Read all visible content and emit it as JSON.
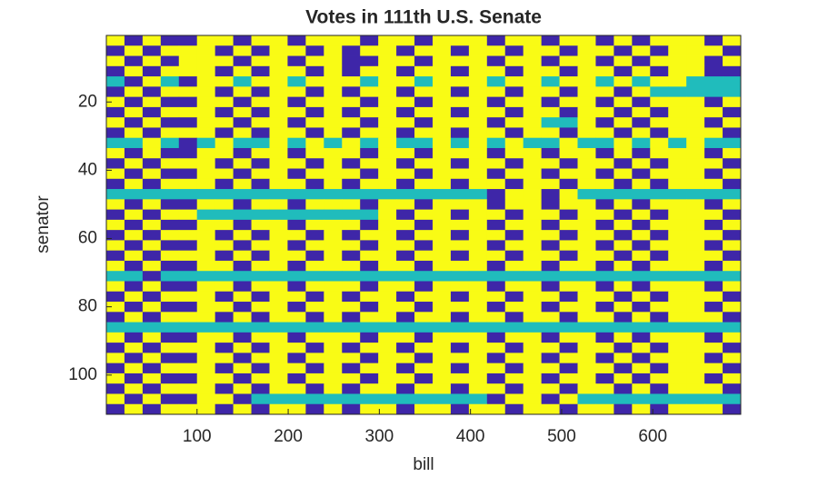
{
  "chart_data": {
    "type": "heatmap",
    "title": "Votes in 111th U.S. Senate",
    "x_label": "bill",
    "y_label": "senator",
    "xlim": [
      0.5,
      696.5
    ],
    "ylim": [
      0.5,
      111.5
    ],
    "ydir": "reverse",
    "xticks": [
      100,
      200,
      300,
      400,
      500,
      600
    ],
    "yticks": [
      20,
      40,
      60,
      80,
      100
    ],
    "clim": [
      -1,
      1
    ],
    "colors": [
      "#3e26a8",
      "#20bcbc",
      "#f9fb15"
    ],
    "matrix": [
      [
        1,
        -1,
        1,
        -1,
        -1,
        1,
        1,
        -1,
        1,
        1,
        -1,
        1,
        1,
        1,
        -1,
        1,
        1,
        -1,
        1,
        1,
        1,
        -1,
        1,
        1,
        -1,
        1,
        1,
        -1,
        1,
        -1,
        1,
        1,
        1,
        -1,
        1
      ],
      [
        -1,
        1,
        -1,
        1,
        1,
        1,
        -1,
        1,
        -1,
        1,
        1,
        -1,
        1,
        -1,
        1,
        1,
        -1,
        1,
        1,
        -1,
        1,
        1,
        -1,
        1,
        1,
        -1,
        1,
        1,
        -1,
        1,
        -1,
        1,
        1,
        1,
        -1
      ],
      [
        1,
        -1,
        1,
        -1,
        1,
        1,
        1,
        -1,
        1,
        1,
        -1,
        1,
        1,
        -1,
        -1,
        1,
        1,
        -1,
        1,
        1,
        1,
        -1,
        1,
        1,
        -1,
        1,
        1,
        -1,
        1,
        -1,
        1,
        1,
        1,
        -1,
        1
      ],
      [
        -1,
        1,
        -1,
        1,
        1,
        1,
        -1,
        1,
        -1,
        1,
        1,
        -1,
        1,
        -1,
        1,
        1,
        -1,
        1,
        1,
        -1,
        1,
        1,
        -1,
        1,
        1,
        -1,
        1,
        1,
        -1,
        1,
        -1,
        1,
        1,
        -1,
        -1
      ],
      [
        0,
        -1,
        1,
        0,
        -1,
        1,
        1,
        0,
        1,
        1,
        0,
        1,
        1,
        1,
        0,
        1,
        1,
        0,
        1,
        1,
        1,
        0,
        1,
        1,
        0,
        1,
        1,
        0,
        1,
        0,
        1,
        1,
        0,
        0,
        0
      ],
      [
        -1,
        1,
        -1,
        1,
        1,
        1,
        -1,
        1,
        -1,
        1,
        1,
        -1,
        1,
        -1,
        1,
        1,
        -1,
        1,
        1,
        -1,
        1,
        1,
        -1,
        1,
        1,
        -1,
        1,
        1,
        -1,
        1,
        0,
        0,
        0,
        0,
        0
      ],
      [
        1,
        -1,
        1,
        -1,
        -1,
        1,
        1,
        -1,
        1,
        1,
        -1,
        1,
        1,
        1,
        -1,
        1,
        1,
        -1,
        1,
        1,
        1,
        -1,
        1,
        1,
        -1,
        1,
        1,
        -1,
        1,
        -1,
        1,
        1,
        1,
        -1,
        1
      ],
      [
        -1,
        1,
        -1,
        1,
        1,
        1,
        -1,
        1,
        -1,
        1,
        1,
        -1,
        1,
        -1,
        1,
        1,
        -1,
        1,
        1,
        -1,
        1,
        1,
        -1,
        1,
        1,
        -1,
        1,
        1,
        -1,
        1,
        -1,
        1,
        1,
        1,
        -1
      ],
      [
        1,
        -1,
        1,
        -1,
        -1,
        1,
        1,
        -1,
        1,
        1,
        -1,
        1,
        1,
        1,
        -1,
        1,
        1,
        -1,
        1,
        1,
        1,
        -1,
        1,
        1,
        0,
        0,
        1,
        -1,
        1,
        -1,
        1,
        1,
        1,
        -1,
        1
      ],
      [
        -1,
        1,
        -1,
        1,
        1,
        1,
        -1,
        1,
        -1,
        1,
        1,
        -1,
        1,
        -1,
        1,
        1,
        -1,
        1,
        1,
        -1,
        1,
        1,
        -1,
        1,
        1,
        -1,
        1,
        1,
        -1,
        1,
        -1,
        1,
        1,
        1,
        -1
      ],
      [
        0,
        0,
        1,
        0,
        -1,
        0,
        1,
        0,
        0,
        1,
        0,
        1,
        0,
        1,
        0,
        1,
        0,
        0,
        1,
        0,
        1,
        0,
        1,
        0,
        0,
        1,
        0,
        0,
        1,
        0,
        1,
        0,
        1,
        0,
        0
      ],
      [
        1,
        -1,
        1,
        -1,
        -1,
        1,
        1,
        -1,
        1,
        1,
        -1,
        1,
        1,
        1,
        -1,
        1,
        1,
        -1,
        1,
        1,
        1,
        -1,
        1,
        1,
        -1,
        1,
        1,
        -1,
        1,
        -1,
        1,
        1,
        1,
        -1,
        1
      ],
      [
        -1,
        1,
        -1,
        1,
        1,
        1,
        -1,
        1,
        -1,
        1,
        1,
        -1,
        1,
        -1,
        1,
        1,
        -1,
        1,
        1,
        -1,
        1,
        1,
        -1,
        1,
        1,
        -1,
        1,
        1,
        -1,
        1,
        -1,
        1,
        1,
        1,
        -1
      ],
      [
        1,
        -1,
        1,
        -1,
        -1,
        1,
        1,
        -1,
        1,
        1,
        -1,
        1,
        1,
        1,
        -1,
        1,
        1,
        -1,
        1,
        1,
        1,
        -1,
        1,
        1,
        -1,
        1,
        1,
        -1,
        1,
        -1,
        1,
        1,
        1,
        -1,
        1
      ],
      [
        -1,
        1,
        -1,
        1,
        1,
        1,
        -1,
        1,
        -1,
        1,
        1,
        -1,
        1,
        -1,
        1,
        1,
        -1,
        1,
        1,
        -1,
        1,
        1,
        -1,
        1,
        1,
        -1,
        1,
        1,
        -1,
        1,
        -1,
        1,
        1,
        1,
        -1
      ],
      [
        0,
        0,
        0,
        0,
        0,
        0,
        0,
        0,
        0,
        0,
        0,
        0,
        0,
        0,
        0,
        0,
        0,
        0,
        0,
        0,
        0,
        -1,
        1,
        1,
        -1,
        1,
        0,
        0,
        0,
        0,
        0,
        0,
        0,
        0,
        0
      ],
      [
        1,
        -1,
        1,
        -1,
        -1,
        1,
        1,
        -1,
        1,
        1,
        -1,
        1,
        1,
        1,
        -1,
        1,
        1,
        -1,
        1,
        1,
        1,
        -1,
        1,
        1,
        -1,
        1,
        1,
        -1,
        1,
        -1,
        1,
        1,
        1,
        -1,
        1
      ],
      [
        -1,
        1,
        -1,
        1,
        1,
        0,
        0,
        0,
        0,
        0,
        0,
        0,
        0,
        0,
        0,
        1,
        -1,
        1,
        1,
        -1,
        1,
        1,
        -1,
        1,
        1,
        -1,
        1,
        1,
        -1,
        1,
        -1,
        1,
        1,
        1,
        -1
      ],
      [
        1,
        -1,
        1,
        -1,
        -1,
        1,
        1,
        -1,
        1,
        1,
        -1,
        1,
        1,
        1,
        -1,
        1,
        1,
        -1,
        1,
        1,
        1,
        -1,
        1,
        1,
        -1,
        1,
        1,
        -1,
        1,
        -1,
        1,
        1,
        1,
        -1,
        1
      ],
      [
        -1,
        1,
        -1,
        1,
        1,
        1,
        -1,
        1,
        -1,
        1,
        1,
        -1,
        1,
        -1,
        1,
        1,
        -1,
        1,
        1,
        -1,
        1,
        1,
        -1,
        1,
        1,
        -1,
        1,
        1,
        -1,
        1,
        -1,
        1,
        1,
        1,
        -1
      ],
      [
        1,
        -1,
        1,
        -1,
        -1,
        1,
        1,
        -1,
        1,
        1,
        -1,
        1,
        1,
        1,
        -1,
        1,
        1,
        -1,
        1,
        1,
        1,
        -1,
        1,
        1,
        -1,
        1,
        1,
        -1,
        1,
        -1,
        1,
        1,
        1,
        -1,
        1
      ],
      [
        -1,
        1,
        -1,
        1,
        1,
        1,
        -1,
        1,
        -1,
        1,
        1,
        -1,
        1,
        -1,
        1,
        1,
        -1,
        1,
        1,
        -1,
        1,
        1,
        -1,
        1,
        1,
        -1,
        1,
        1,
        -1,
        1,
        -1,
        1,
        1,
        1,
        -1
      ],
      [
        1,
        -1,
        1,
        -1,
        -1,
        1,
        1,
        -1,
        1,
        1,
        -1,
        1,
        1,
        1,
        -1,
        1,
        1,
        -1,
        1,
        1,
        1,
        -1,
        1,
        1,
        -1,
        1,
        1,
        -1,
        1,
        -1,
        1,
        1,
        1,
        -1,
        1
      ],
      [
        0,
        0,
        -1,
        0,
        0,
        0,
        0,
        0,
        0,
        0,
        0,
        0,
        0,
        0,
        0,
        0,
        0,
        0,
        0,
        0,
        0,
        0,
        0,
        0,
        0,
        0,
        0,
        0,
        0,
        0,
        0,
        0,
        0,
        0,
        0
      ],
      [
        1,
        -1,
        1,
        -1,
        -1,
        1,
        1,
        -1,
        1,
        1,
        -1,
        1,
        1,
        1,
        -1,
        1,
        1,
        -1,
        1,
        1,
        1,
        -1,
        1,
        1,
        -1,
        1,
        1,
        -1,
        1,
        -1,
        1,
        1,
        1,
        -1,
        1
      ],
      [
        -1,
        1,
        -1,
        1,
        1,
        1,
        -1,
        1,
        -1,
        1,
        1,
        -1,
        1,
        -1,
        1,
        1,
        -1,
        1,
        1,
        -1,
        1,
        1,
        -1,
        1,
        1,
        -1,
        1,
        1,
        -1,
        1,
        -1,
        1,
        1,
        1,
        -1
      ],
      [
        1,
        -1,
        1,
        -1,
        -1,
        1,
        1,
        -1,
        1,
        1,
        -1,
        1,
        1,
        1,
        -1,
        1,
        1,
        -1,
        1,
        1,
        1,
        -1,
        1,
        1,
        -1,
        1,
        1,
        -1,
        1,
        -1,
        1,
        1,
        1,
        -1,
        1
      ],
      [
        -1,
        1,
        -1,
        1,
        1,
        1,
        -1,
        1,
        -1,
        1,
        1,
        -1,
        1,
        -1,
        1,
        1,
        -1,
        1,
        1,
        -1,
        1,
        1,
        -1,
        1,
        1,
        -1,
        1,
        1,
        -1,
        1,
        -1,
        1,
        1,
        1,
        -1
      ],
      [
        0,
        0,
        0,
        0,
        0,
        0,
        0,
        0,
        0,
        0,
        0,
        0,
        0,
        0,
        0,
        0,
        0,
        0,
        0,
        0,
        0,
        0,
        0,
        0,
        0,
        0,
        0,
        0,
        0,
        0,
        0,
        0,
        0,
        0,
        0
      ],
      [
        1,
        -1,
        1,
        -1,
        -1,
        1,
        1,
        -1,
        1,
        1,
        -1,
        1,
        1,
        1,
        -1,
        1,
        1,
        -1,
        1,
        1,
        1,
        -1,
        1,
        1,
        -1,
        1,
        1,
        -1,
        1,
        -1,
        1,
        1,
        1,
        -1,
        1
      ],
      [
        -1,
        1,
        -1,
        1,
        1,
        1,
        -1,
        1,
        -1,
        1,
        1,
        -1,
        1,
        -1,
        1,
        1,
        -1,
        1,
        1,
        -1,
        1,
        1,
        -1,
        1,
        1,
        -1,
        1,
        1,
        -1,
        1,
        -1,
        1,
        1,
        1,
        -1
      ],
      [
        1,
        -1,
        1,
        -1,
        -1,
        1,
        1,
        -1,
        1,
        1,
        -1,
        1,
        1,
        1,
        -1,
        1,
        1,
        -1,
        1,
        1,
        1,
        -1,
        1,
        1,
        -1,
        1,
        1,
        -1,
        1,
        -1,
        1,
        1,
        1,
        -1,
        1
      ],
      [
        -1,
        1,
        -1,
        1,
        1,
        1,
        -1,
        1,
        -1,
        1,
        1,
        -1,
        1,
        -1,
        1,
        1,
        -1,
        1,
        1,
        -1,
        1,
        1,
        -1,
        1,
        1,
        -1,
        1,
        1,
        -1,
        1,
        -1,
        1,
        1,
        1,
        -1
      ],
      [
        1,
        -1,
        1,
        -1,
        -1,
        1,
        1,
        -1,
        1,
        1,
        -1,
        1,
        1,
        1,
        -1,
        1,
        1,
        -1,
        1,
        1,
        1,
        -1,
        1,
        1,
        -1,
        1,
        1,
        -1,
        1,
        -1,
        1,
        1,
        1,
        -1,
        1
      ],
      [
        -1,
        1,
        -1,
        1,
        1,
        1,
        -1,
        1,
        -1,
        1,
        1,
        -1,
        1,
        -1,
        1,
        1,
        -1,
        1,
        1,
        -1,
        1,
        1,
        -1,
        1,
        1,
        -1,
        1,
        1,
        -1,
        1,
        -1,
        1,
        1,
        1,
        -1
      ],
      [
        1,
        -1,
        1,
        -1,
        -1,
        1,
        1,
        -1,
        0,
        0,
        0,
        0,
        0,
        0,
        0,
        0,
        0,
        0,
        0,
        0,
        0,
        -1,
        1,
        1,
        -1,
        1,
        0,
        0,
        0,
        0,
        0,
        0,
        0,
        0,
        0
      ],
      [
        -1,
        1,
        -1,
        1,
        1,
        1,
        -1,
        1,
        -1,
        1,
        1,
        -1,
        1,
        -1,
        1,
        1,
        -1,
        1,
        1,
        -1,
        1,
        1,
        -1,
        1,
        1,
        -1,
        1,
        1,
        -1,
        1,
        -1,
        1,
        1,
        1,
        -1
      ]
    ]
  }
}
